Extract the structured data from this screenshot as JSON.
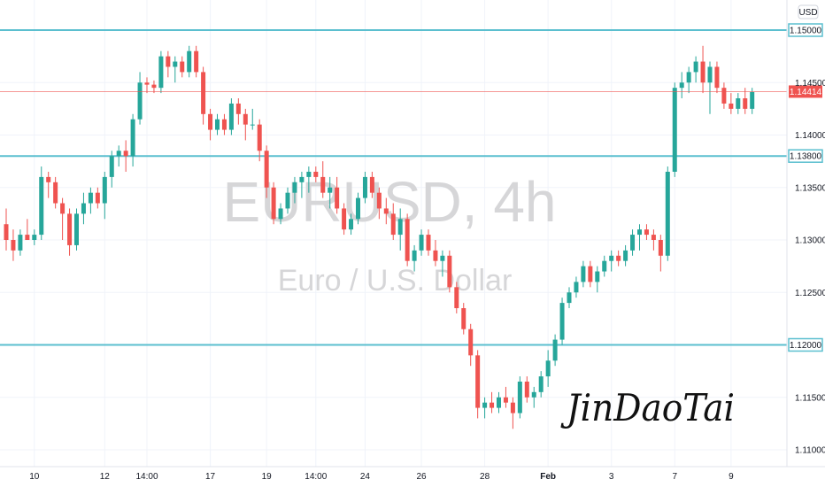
{
  "chart_data": {
    "type": "candlestick",
    "title": "EURUSD, 4h",
    "subtitle": "Euro / U.S. Dollar",
    "currency": "USD",
    "signature": "JinDaoTai",
    "y_range": [
      1.1075,
      1.1555
    ],
    "y_ticks": [
      "1.11000",
      "1.11500",
      "1.12000",
      "1.12500",
      "1.13000",
      "1.13500",
      "1.13800",
      "1.14000",
      "1.14500",
      "1.15000"
    ],
    "x_ticks": [
      {
        "label": "10",
        "i": 4
      },
      {
        "label": "12",
        "i": 14
      },
      {
        "label": "14:00",
        "i": 20
      },
      {
        "label": "17",
        "i": 29
      },
      {
        "label": "19",
        "i": 37
      },
      {
        "label": "14:00",
        "i": 44
      },
      {
        "label": "24",
        "i": 51
      },
      {
        "label": "26",
        "i": 59
      },
      {
        "label": "28",
        "i": 68
      },
      {
        "label": "Feb",
        "i": 77,
        "bold": true
      },
      {
        "label": "3",
        "i": 86
      },
      {
        "label": "7",
        "i": 95
      },
      {
        "label": "9",
        "i": 103
      }
    ],
    "levels": [
      {
        "value": 1.15,
        "label": "1.15000"
      },
      {
        "value": 1.138,
        "label": "1.13800"
      },
      {
        "value": 1.12,
        "label": "1.12000"
      }
    ],
    "last_price": {
      "value": 1.14414,
      "label": "1.14414"
    },
    "colors": {
      "up": "#26a69a",
      "down": "#ef5350",
      "level": "#5bbfcf",
      "last": "#ef5350",
      "grid": "#f0f3fa"
    },
    "candles": [
      [
        1.1315,
        1.133,
        1.129,
        1.13
      ],
      [
        1.13,
        1.131,
        1.128,
        1.129
      ],
      [
        1.129,
        1.131,
        1.1285,
        1.1305
      ],
      [
        1.1305,
        1.132,
        1.13,
        1.13
      ],
      [
        1.13,
        1.131,
        1.1295,
        1.1305
      ],
      [
        1.1305,
        1.137,
        1.13,
        1.136
      ],
      [
        1.136,
        1.1365,
        1.134,
        1.1355
      ],
      [
        1.1355,
        1.136,
        1.133,
        1.1335
      ],
      [
        1.1335,
        1.134,
        1.13,
        1.1325
      ],
      [
        1.1325,
        1.133,
        1.1285,
        1.1295
      ],
      [
        1.1295,
        1.133,
        1.129,
        1.1325
      ],
      [
        1.1325,
        1.1345,
        1.1315,
        1.1335
      ],
      [
        1.1335,
        1.135,
        1.1325,
        1.1345
      ],
      [
        1.1345,
        1.135,
        1.133,
        1.1335
      ],
      [
        1.1335,
        1.1365,
        1.132,
        1.136
      ],
      [
        1.136,
        1.1385,
        1.135,
        1.138
      ],
      [
        1.138,
        1.139,
        1.137,
        1.1385
      ],
      [
        1.1385,
        1.1395,
        1.1365,
        1.138
      ],
      [
        1.138,
        1.142,
        1.137,
        1.1415
      ],
      [
        1.1415,
        1.146,
        1.141,
        1.145
      ],
      [
        1.145,
        1.1455,
        1.144,
        1.1448
      ],
      [
        1.1448,
        1.1452,
        1.144,
        1.1445
      ],
      [
        1.1445,
        1.148,
        1.144,
        1.1475
      ],
      [
        1.1475,
        1.148,
        1.1455,
        1.1465
      ],
      [
        1.1465,
        1.1475,
        1.145,
        1.147
      ],
      [
        1.147,
        1.1475,
        1.1455,
        1.146
      ],
      [
        1.146,
        1.1485,
        1.1455,
        1.148
      ],
      [
        1.148,
        1.1485,
        1.1455,
        1.146
      ],
      [
        1.146,
        1.1465,
        1.141,
        1.142
      ],
      [
        1.142,
        1.1425,
        1.1395,
        1.1405
      ],
      [
        1.1405,
        1.142,
        1.14,
        1.1415
      ],
      [
        1.1415,
        1.142,
        1.14,
        1.1405
      ],
      [
        1.1405,
        1.1435,
        1.14,
        1.143
      ],
      [
        1.143,
        1.1435,
        1.141,
        1.142
      ],
      [
        1.142,
        1.1425,
        1.1395,
        1.141
      ],
      [
        1.141,
        1.1425,
        1.1405,
        1.141
      ],
      [
        1.141,
        1.1415,
        1.1375,
        1.1385
      ],
      [
        1.1385,
        1.139,
        1.134,
        1.135
      ],
      [
        1.135,
        1.1355,
        1.1315,
        1.132
      ],
      [
        1.132,
        1.1335,
        1.1315,
        1.133
      ],
      [
        1.133,
        1.135,
        1.1325,
        1.1345
      ],
      [
        1.1345,
        1.136,
        1.1335,
        1.1355
      ],
      [
        1.1355,
        1.1365,
        1.134,
        1.136
      ],
      [
        1.136,
        1.137,
        1.1345,
        1.1365
      ],
      [
        1.1365,
        1.137,
        1.1355,
        1.136
      ],
      [
        1.136,
        1.1375,
        1.134,
        1.1345
      ],
      [
        1.1345,
        1.136,
        1.133,
        1.135
      ],
      [
        1.135,
        1.136,
        1.1325,
        1.133
      ],
      [
        1.133,
        1.1335,
        1.1305,
        1.131
      ],
      [
        1.131,
        1.1325,
        1.1305,
        1.132
      ],
      [
        1.132,
        1.1345,
        1.1315,
        1.134
      ],
      [
        1.134,
        1.1365,
        1.1335,
        1.136
      ],
      [
        1.136,
        1.1365,
        1.134,
        1.1345
      ],
      [
        1.1345,
        1.135,
        1.132,
        1.133
      ],
      [
        1.133,
        1.134,
        1.1315,
        1.1325
      ],
      [
        1.1325,
        1.1335,
        1.13,
        1.1305
      ],
      [
        1.1305,
        1.133,
        1.129,
        1.132
      ],
      [
        1.132,
        1.1325,
        1.1275,
        1.128
      ],
      [
        1.128,
        1.1295,
        1.127,
        1.129
      ],
      [
        1.129,
        1.131,
        1.1285,
        1.1305
      ],
      [
        1.1305,
        1.131,
        1.1285,
        1.129
      ],
      [
        1.129,
        1.13,
        1.1275,
        1.128
      ],
      [
        1.128,
        1.129,
        1.1265,
        1.1285
      ],
      [
        1.1285,
        1.129,
        1.125,
        1.1255
      ],
      [
        1.1255,
        1.126,
        1.123,
        1.1235
      ],
      [
        1.1235,
        1.124,
        1.121,
        1.1215
      ],
      [
        1.1215,
        1.122,
        1.118,
        1.119
      ],
      [
        1.119,
        1.1195,
        1.113,
        1.114
      ],
      [
        1.114,
        1.115,
        1.113,
        1.1145
      ],
      [
        1.1145,
        1.1155,
        1.1135,
        1.114
      ],
      [
        1.114,
        1.1155,
        1.1135,
        1.115
      ],
      [
        1.115,
        1.116,
        1.114,
        1.1145
      ],
      [
        1.1145,
        1.115,
        1.112,
        1.1135
      ],
      [
        1.1135,
        1.117,
        1.113,
        1.1165
      ],
      [
        1.1165,
        1.117,
        1.1145,
        1.115
      ],
      [
        1.115,
        1.116,
        1.114,
        1.1155
      ],
      [
        1.1155,
        1.1175,
        1.115,
        1.117
      ],
      [
        1.117,
        1.1195,
        1.116,
        1.1185
      ],
      [
        1.1185,
        1.121,
        1.118,
        1.1205
      ],
      [
        1.1205,
        1.1245,
        1.12,
        1.124
      ],
      [
        1.124,
        1.1255,
        1.1235,
        1.125
      ],
      [
        1.125,
        1.1265,
        1.1245,
        1.126
      ],
      [
        1.126,
        1.128,
        1.1255,
        1.1275
      ],
      [
        1.1275,
        1.128,
        1.1255,
        1.126
      ],
      [
        1.126,
        1.1275,
        1.125,
        1.127
      ],
      [
        1.127,
        1.1285,
        1.1265,
        1.128
      ],
      [
        1.128,
        1.129,
        1.127,
        1.1285
      ],
      [
        1.1285,
        1.129,
        1.1275,
        1.128
      ],
      [
        1.128,
        1.1295,
        1.1275,
        1.129
      ],
      [
        1.129,
        1.131,
        1.1285,
        1.1305
      ],
      [
        1.1305,
        1.1315,
        1.129,
        1.131
      ],
      [
        1.131,
        1.1315,
        1.13,
        1.1305
      ],
      [
        1.1305,
        1.131,
        1.129,
        1.13
      ],
      [
        1.13,
        1.1305,
        1.127,
        1.1285
      ],
      [
        1.1285,
        1.137,
        1.128,
        1.1365
      ],
      [
        1.1365,
        1.145,
        1.136,
        1.1445
      ],
      [
        1.1445,
        1.146,
        1.1435,
        1.145
      ],
      [
        1.145,
        1.1465,
        1.144,
        1.146
      ],
      [
        1.146,
        1.1475,
        1.145,
        1.147
      ],
      [
        1.147,
        1.1485,
        1.144,
        1.145
      ],
      [
        1.145,
        1.147,
        1.142,
        1.1465
      ],
      [
        1.1465,
        1.147,
        1.144,
        1.1445
      ],
      [
        1.1445,
        1.145,
        1.1425,
        1.143
      ],
      [
        1.143,
        1.144,
        1.142,
        1.1425
      ],
      [
        1.1425,
        1.144,
        1.142,
        1.1435
      ],
      [
        1.1435,
        1.1445,
        1.142,
        1.1425
      ],
      [
        1.1425,
        1.1445,
        1.142,
        1.1441
      ]
    ]
  }
}
